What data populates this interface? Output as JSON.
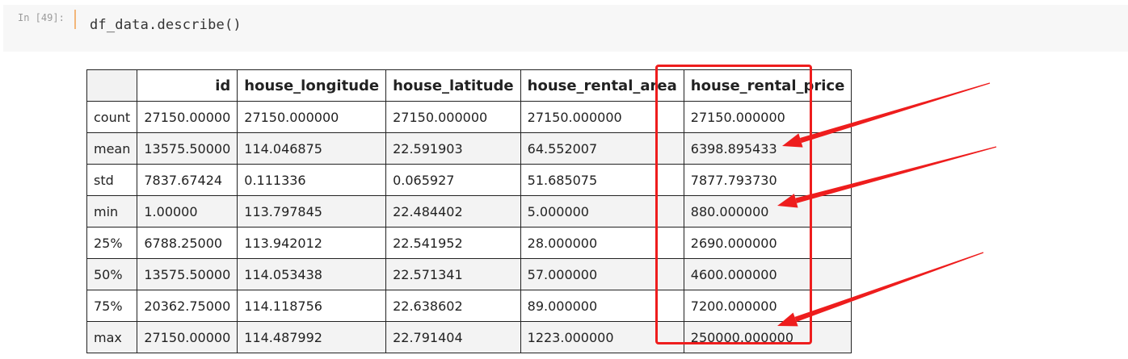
{
  "cell": {
    "prompt": "In [49]:",
    "code": "df_data.describe()"
  },
  "table": {
    "columns": [
      "id",
      "house_longitude",
      "house_latitude",
      "house_rental_area",
      "house_rental_price"
    ],
    "rows": [
      {
        "label": "count",
        "values": [
          "27150.00000",
          "27150.000000",
          "27150.000000",
          "27150.000000",
          "27150.000000"
        ]
      },
      {
        "label": "mean",
        "values": [
          "13575.50000",
          "114.046875",
          "22.591903",
          "64.552007",
          "6398.895433"
        ]
      },
      {
        "label": "std",
        "values": [
          "7837.67424",
          "0.111336",
          "0.065927",
          "51.685075",
          "7877.793730"
        ]
      },
      {
        "label": "min",
        "values": [
          "1.00000",
          "113.797845",
          "22.484402",
          "5.000000",
          "880.000000"
        ]
      },
      {
        "label": "25%",
        "values": [
          "6788.25000",
          "113.942012",
          "22.541952",
          "28.000000",
          "2690.000000"
        ]
      },
      {
        "label": "50%",
        "values": [
          "13575.50000",
          "114.053438",
          "22.571341",
          "57.000000",
          "4600.000000"
        ]
      },
      {
        "label": "75%",
        "values": [
          "20362.75000",
          "114.118756",
          "22.638602",
          "89.000000",
          "7200.000000"
        ]
      },
      {
        "label": "max",
        "values": [
          "27150.00000",
          "114.487992",
          "22.791404",
          "1223.000000",
          "250000.000000"
        ]
      }
    ]
  },
  "annotation": {
    "color": "#ee1d1d",
    "highlighted_column": "house_rental_price",
    "arrow_targets": [
      "mean",
      "min",
      "max"
    ]
  }
}
